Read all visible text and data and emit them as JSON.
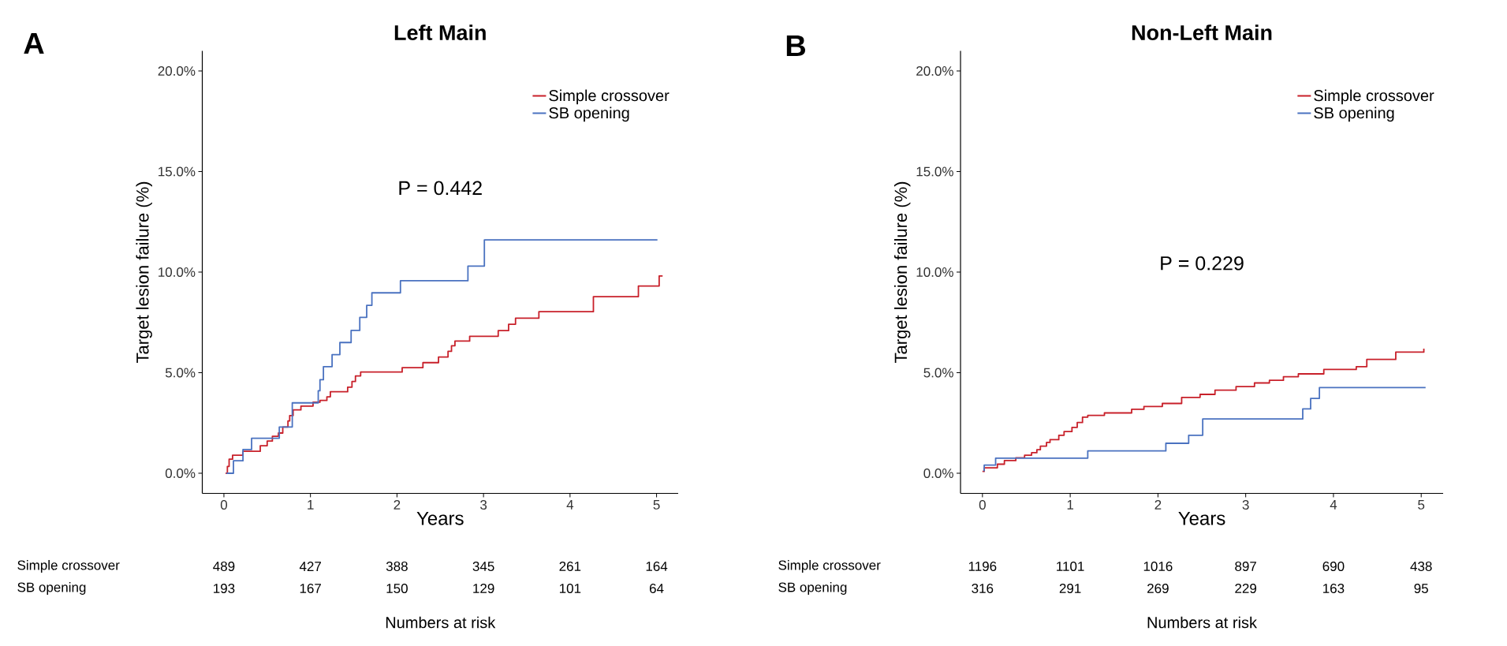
{
  "chart_data": [
    {
      "type": "step",
      "title": "Left Main",
      "xlabel": "Years",
      "ylabel": "Target lesion failure (%)",
      "xlim": [
        -0.25,
        5.25
      ],
      "ylim": [
        -1.0,
        21.0
      ],
      "xticks": [
        0,
        1,
        2,
        3,
        4,
        5
      ],
      "yticks": [
        {
          "value": 0,
          "label": "0.0%"
        },
        {
          "value": 5,
          "label": "5.0%"
        },
        {
          "value": 10,
          "label": "10.0%"
        },
        {
          "value": 15,
          "label": "15.0%"
        },
        {
          "value": 20,
          "label": "20.0%"
        }
      ],
      "legend": "top right",
      "marker": "none",
      "line_style": "solid",
      "series": [
        {
          "name": "Simple crossover",
          "color": "#c8202a",
          "x": [
            0.02,
            0.04,
            0.06,
            0.1,
            0.22,
            0.42,
            0.5,
            0.56,
            0.63,
            0.68,
            0.74,
            0.76,
            0.8,
            0.89,
            1.03,
            1.11,
            1.19,
            1.23,
            1.43,
            1.48,
            1.52,
            1.58,
            2.06,
            2.3,
            2.48,
            2.59,
            2.63,
            2.67,
            2.84,
            3.17,
            3.29,
            3.37,
            3.64,
            4.27,
            4.79,
            5.03,
            5.07
          ],
          "values": [
            0.0,
            0.34,
            0.7,
            0.9,
            1.09,
            1.37,
            1.6,
            1.84,
            2.0,
            2.3,
            2.6,
            2.87,
            3.15,
            3.34,
            3.53,
            3.62,
            3.8,
            4.05,
            4.28,
            4.56,
            4.84,
            5.03,
            5.25,
            5.5,
            5.78,
            6.06,
            6.34,
            6.57,
            6.81,
            7.09,
            7.41,
            7.71,
            8.03,
            8.78,
            9.31,
            9.81,
            9.81
          ]
        },
        {
          "name": "SB opening",
          "color": "#4a72c0",
          "x": [
            0.03,
            0.11,
            0.22,
            0.32,
            0.64,
            0.79,
            1.09,
            1.11,
            1.15,
            1.25,
            1.34,
            1.47,
            1.57,
            1.65,
            1.71,
            2.04,
            2.82,
            3.01,
            5.01
          ],
          "values": [
            0.0,
            0.62,
            1.18,
            1.74,
            2.3,
            3.5,
            4.1,
            4.65,
            5.3,
            5.9,
            6.5,
            7.1,
            7.75,
            8.35,
            8.97,
            9.57,
            10.3,
            11.6,
            11.6
          ]
        }
      ],
      "annotations": [
        "P = 0.442",
        "Simple crossover",
        "489",
        "427",
        "388",
        "345",
        "261",
        "164",
        "SB opening",
        "193",
        "167",
        "150",
        "129",
        "101",
        "64",
        "Numbers at risk",
        "A"
      ]
    },
    {
      "type": "step",
      "title": "Non-Left Main",
      "xlabel": "Years",
      "ylabel": "Target lesion failure (%)",
      "xlim": [
        -0.25,
        5.25
      ],
      "ylim": [
        -1.0,
        21.0
      ],
      "xticks": [
        0,
        1,
        2,
        3,
        4,
        5
      ],
      "yticks": [
        {
          "value": 0,
          "label": "0.0%"
        },
        {
          "value": 5,
          "label": "5.0%"
        },
        {
          "value": 10,
          "label": "10.0%"
        },
        {
          "value": 15,
          "label": "15.0%"
        },
        {
          "value": 20,
          "label": "20.0%"
        }
      ],
      "legend": "top right",
      "marker": "none",
      "line_style": "solid",
      "series": [
        {
          "name": "Simple crossover",
          "color": "#c8202a",
          "x": [
            0.0,
            0.02,
            0.17,
            0.25,
            0.38,
            0.48,
            0.56,
            0.62,
            0.66,
            0.73,
            0.77,
            0.87,
            0.93,
            1.02,
            1.08,
            1.14,
            1.2,
            1.39,
            1.7,
            1.84,
            2.05,
            2.27,
            2.48,
            2.65,
            2.89,
            3.1,
            3.27,
            3.43,
            3.6,
            3.89,
            4.26,
            4.38,
            4.71,
            5.03
          ],
          "values": [
            0.09,
            0.27,
            0.45,
            0.63,
            0.77,
            0.9,
            1.02,
            1.17,
            1.35,
            1.53,
            1.67,
            1.89,
            2.07,
            2.28,
            2.52,
            2.79,
            2.88,
            3.0,
            3.18,
            3.32,
            3.47,
            3.77,
            3.92,
            4.13,
            4.31,
            4.49,
            4.62,
            4.8,
            4.94,
            5.16,
            5.3,
            5.66,
            6.02,
            6.2
          ]
        },
        {
          "name": "SB opening",
          "color": "#4a72c0",
          "x": [
            0.01,
            0.02,
            0.15,
            1.2,
            2.09,
            2.35,
            2.51,
            3.65,
            3.74,
            3.84,
            5.05
          ],
          "values": [
            0.13,
            0.41,
            0.75,
            1.11,
            1.49,
            1.89,
            2.7,
            3.2,
            3.72,
            4.26,
            4.26
          ]
        }
      ],
      "annotations": [
        "P = 0.229",
        "Simple crossover",
        "1196",
        "1101",
        "1016",
        "897",
        "690",
        "438",
        "SB opening",
        "316",
        "291",
        "269",
        "229",
        "163",
        "95",
        "Numbers at risk",
        "B"
      ]
    }
  ]
}
